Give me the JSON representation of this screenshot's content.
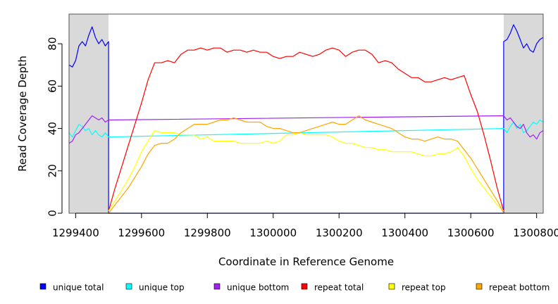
{
  "chart_data": {
    "type": "line",
    "title": "",
    "xlabel": "Coordinate in Reference Genome",
    "ylabel": "Read Coverage Depth",
    "xlim": [
      1299380,
      1300820
    ],
    "ylim": [
      0,
      94
    ],
    "x_ticks": [
      1299400,
      1299600,
      1299800,
      1300000,
      1300200,
      1300400,
      1300600,
      1300800
    ],
    "x_tick_labels": [
      "1299400",
      "1299600",
      "1299800",
      "1300000",
      "1300200",
      "1300400",
      "1300600",
      "1300800"
    ],
    "y_ticks": [
      0,
      20,
      40,
      60,
      80
    ],
    "y_tick_labels": [
      "0",
      "20",
      "40",
      "60",
      "80"
    ],
    "grid": false,
    "shaded_regions": [
      [
        1299380,
        1299500
      ],
      [
        1300700,
        1300820
      ]
    ],
    "legend_position": "bottom",
    "series": [
      {
        "name": "unique total",
        "color": "#0000ff",
        "x": [
          1299380,
          1299390,
          1299400,
          1299410,
          1299420,
          1299430,
          1299440,
          1299450,
          1299460,
          1299470,
          1299480,
          1299490,
          1299500,
          1299500,
          1300700,
          1300700,
          1300710,
          1300720,
          1300730,
          1300740,
          1300750,
          1300760,
          1300770,
          1300780,
          1300790,
          1300800,
          1300810,
          1300820
        ],
        "y": [
          70,
          69,
          72,
          79,
          81,
          79,
          84,
          88,
          83,
          80,
          82,
          79,
          81,
          0,
          0,
          81,
          82,
          85,
          89,
          86,
          82,
          78,
          80,
          77,
          76,
          80,
          82,
          83
        ]
      },
      {
        "name": "unique top",
        "color": "#00ffff",
        "x": [
          1299380,
          1299390,
          1299400,
          1299410,
          1299420,
          1299430,
          1299440,
          1299450,
          1299460,
          1299470,
          1299480,
          1299490,
          1299500,
          1300700,
          1300710,
          1300720,
          1300730,
          1300740,
          1300750,
          1300760,
          1300770,
          1300780,
          1300790,
          1300800,
          1300810,
          1300820
        ],
        "y": [
          38,
          36,
          39,
          42,
          41,
          39,
          40,
          37,
          39,
          37,
          36,
          38,
          36,
          40,
          38,
          41,
          43,
          40,
          42,
          38,
          39,
          41,
          43,
          42,
          44,
          43
        ]
      },
      {
        "name": "unique bottom",
        "color": "#a020f0",
        "x": [
          1299380,
          1299390,
          1299400,
          1299410,
          1299420,
          1299430,
          1299440,
          1299450,
          1299460,
          1299470,
          1299480,
          1299490,
          1299500,
          1300700,
          1300710,
          1300720,
          1300730,
          1300740,
          1300750,
          1300760,
          1300770,
          1300780,
          1300790,
          1300800,
          1300810,
          1300820
        ],
        "y": [
          33,
          34,
          37,
          38,
          40,
          42,
          44,
          46,
          45,
          44,
          45,
          43,
          44,
          46,
          44,
          45,
          43,
          41,
          40,
          42,
          38,
          36,
          37,
          35,
          38,
          39
        ]
      },
      {
        "name": "repeat total",
        "color": "#ff0000",
        "x": [
          1299500,
          1299520,
          1299540,
          1299560,
          1299580,
          1299600,
          1299620,
          1299640,
          1299660,
          1299680,
          1299700,
          1299720,
          1299740,
          1299760,
          1299780,
          1299800,
          1299820,
          1299840,
          1299860,
          1299880,
          1299900,
          1299920,
          1299940,
          1299960,
          1299980,
          1300000,
          1300020,
          1300040,
          1300060,
          1300080,
          1300100,
          1300120,
          1300140,
          1300160,
          1300180,
          1300200,
          1300220,
          1300240,
          1300260,
          1300280,
          1300300,
          1300320,
          1300340,
          1300360,
          1300380,
          1300400,
          1300420,
          1300440,
          1300460,
          1300480,
          1300500,
          1300520,
          1300540,
          1300560,
          1300580,
          1300600,
          1300620,
          1300640,
          1300660,
          1300680,
          1300700
        ],
        "y": [
          1,
          12,
          22,
          32,
          42,
          52,
          63,
          71,
          71,
          72,
          71,
          75,
          77,
          77,
          78,
          77,
          78,
          78,
          76,
          77,
          77,
          76,
          77,
          76,
          76,
          74,
          73,
          74,
          74,
          76,
          75,
          74,
          75,
          77,
          78,
          77,
          74,
          76,
          77,
          77,
          75,
          71,
          72,
          71,
          68,
          66,
          64,
          64,
          62,
          62,
          63,
          64,
          63,
          64,
          65,
          56,
          48,
          37,
          25,
          12,
          1
        ]
      },
      {
        "name": "repeat top",
        "color": "#ffff00",
        "x": [
          1299500,
          1299520,
          1299540,
          1299560,
          1299580,
          1299600,
          1299620,
          1299640,
          1299660,
          1299680,
          1299700,
          1299720,
          1299740,
          1299760,
          1299780,
          1299800,
          1299820,
          1299840,
          1299860,
          1299880,
          1299900,
          1299920,
          1299940,
          1299960,
          1299980,
          1300000,
          1300020,
          1300040,
          1300060,
          1300080,
          1300100,
          1300120,
          1300140,
          1300160,
          1300180,
          1300200,
          1300220,
          1300240,
          1300260,
          1300280,
          1300300,
          1300320,
          1300340,
          1300360,
          1300380,
          1300400,
          1300420,
          1300440,
          1300460,
          1300480,
          1300500,
          1300520,
          1300540,
          1300560,
          1300580,
          1300600,
          1300620,
          1300640,
          1300660,
          1300680,
          1300700
        ],
        "y": [
          1,
          6,
          11,
          16,
          22,
          29,
          34,
          39,
          38,
          38,
          38,
          37,
          37,
          37,
          35,
          36,
          34,
          34,
          34,
          34,
          33,
          33,
          33,
          33,
          34,
          33,
          34,
          37,
          37,
          38,
          37,
          37,
          37,
          37,
          36,
          34,
          33,
          33,
          32,
          31,
          31,
          30,
          30,
          29,
          29,
          29,
          29,
          28,
          27,
          27,
          28,
          28,
          29,
          31,
          27,
          21,
          16,
          12,
          8,
          4,
          1
        ]
      },
      {
        "name": "repeat bottom",
        "color": "#ffa500",
        "x": [
          1299500,
          1299520,
          1299540,
          1299560,
          1299580,
          1299600,
          1299620,
          1299640,
          1299660,
          1299680,
          1299700,
          1299720,
          1299740,
          1299760,
          1299780,
          1299800,
          1299820,
          1299840,
          1299860,
          1299880,
          1299900,
          1299920,
          1299940,
          1299960,
          1299980,
          1300000,
          1300020,
          1300040,
          1300060,
          1300080,
          1300100,
          1300120,
          1300140,
          1300160,
          1300180,
          1300200,
          1300220,
          1300240,
          1300260,
          1300280,
          1300300,
          1300320,
          1300340,
          1300360,
          1300380,
          1300400,
          1300420,
          1300440,
          1300460,
          1300480,
          1300500,
          1300520,
          1300540,
          1300560,
          1300580,
          1300600,
          1300620,
          1300640,
          1300660,
          1300680,
          1300700
        ],
        "y": [
          0,
          4,
          8,
          12,
          17,
          22,
          28,
          32,
          33,
          33,
          35,
          38,
          40,
          42,
          42,
          42,
          43,
          44,
          44,
          45,
          44,
          43,
          43,
          43,
          41,
          40,
          40,
          39,
          38,
          38,
          39,
          40,
          41,
          42,
          43,
          42,
          42,
          44,
          46,
          44,
          43,
          42,
          41,
          40,
          38,
          36,
          35,
          35,
          34,
          35,
          36,
          35,
          35,
          34,
          30,
          26,
          21,
          16,
          11,
          6,
          0
        ]
      }
    ]
  }
}
